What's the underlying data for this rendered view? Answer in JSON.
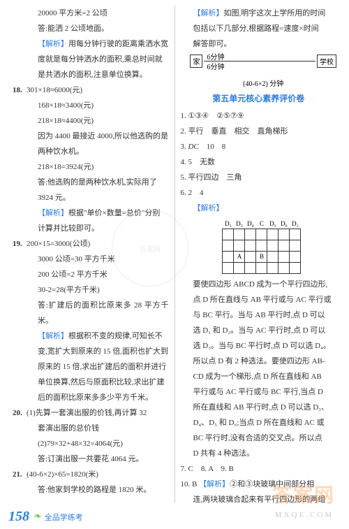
{
  "left": {
    "l1": "20000 平方米=2 公顷",
    "l2": "答:能洒 2 公顷地面。",
    "l3a": "【解析】",
    "l3b": "用每分钟行驶的距离乘洒水宽",
    "l4": "度就是每分钟洒水的面积,乘总时间就",
    "l5": "是共洒水的面积,注意单位换算。",
    "q18": "18.",
    "l6": "301×18≈6000(元)",
    "l7": "168×18≈3400(元)",
    "l8": "218×18≈4400(元)",
    "l9": "因为 4400 最接近 4000,所以他选购的是",
    "l10": "两种饮水机。",
    "l11": "218×18=3924(元)",
    "l12": "答:他选购的是两种饮水机,实际用了",
    "l13": "3924 元。",
    "l14a": "【解析】",
    "l14b": "根据\"单价×数量=总价\"分别",
    "l15": "计算并比较即可。",
    "q19": "19.",
    "l16": "200×15=3000(公顷)",
    "l17": "3000 公顷=30 平方千米",
    "l18": "200 公顷=2 平方千米",
    "l19": "30-2=28(平方千米)",
    "l20": "答:扩建后的面积比原来多 28 平方千米。",
    "l21a": "【解析】",
    "l21b": "根据积不变的规律,可知长不",
    "l22": "变,宽扩大到原来的 15 倍,面积也扩大到",
    "l23": "原来的 15 倍,求出扩建后的面积并进行",
    "l24": "单位换算,然后与原面积比较,求出扩建",
    "l25": "后的面积比原来多多少平方千米。",
    "q20": "20.",
    "l26": "(1)先算一套演出服的价钱,再计算 32",
    "l27": "套演出服的总价钱",
    "l28": "(2)79×32+48×32=4064(元)",
    "l29": "答:订演出服一共要花 4064 元。",
    "q21": "21.",
    "l30": "(40-6×2)×65=1820(米)",
    "l31": "答:他家到学校的路程是 1820 米。"
  },
  "right": {
    "r1a": "【解析】",
    "r1b": "如图,明宇这次上学所用的时间",
    "r2": "包括以下几部分,根据路程=速度×时间",
    "r3": "解答即可。",
    "route": {
      "home": "家",
      "school": "学校",
      "six1": "6分钟",
      "six2": "6分钟",
      "dur": "(40-6×2) 分钟"
    },
    "section": "第五单元核心素养评价卷",
    "a1": "1.  ①③④　②⑤⑦⑨",
    "a2": "2.  平行　垂直　相交　直角梯形",
    "a3": "3.  DC　10　8",
    "a4": "4.  5　无数",
    "a5": "5.  平行四边　三角",
    "a6": "6.  2　4",
    "r4": "【解析】",
    "grid": {
      "hdr": [
        "D₁",
        "D₃",
        "D₄",
        "C",
        "D₅",
        "D₆",
        "D₂"
      ],
      "A": "A",
      "B": "B"
    },
    "r5": "要使四边形 ABCD 成为一个平行四边形,",
    "r6": "点 D 所在直线与 AB 平行或与 AC 平行或",
    "r7": "与 BC 平行。当与 AB 平行时,点 D 可以",
    "r8": "选 D₁ 和 D₂。当与 AC 平行时,点 D 可以",
    "r9": "选 D₃。当与 BC 平行时,点 D 可以选 D₄。",
    "r10": "所以点 D 有 2 种选法。要使四边形 AB-",
    "r11": "CD 成为一个梯形,点 D 所在直线和 AB",
    "r12": "平行或与 AC 平行或与 BC 平行,当点 D",
    "r13": "所在直线和 AB 平行时,点 D 可以选 D₃、",
    "r14": "D₄、D₅ 和 D₆;当点 D 所在直线和 AC 或",
    "r15": "BC 平行时,没有合适的交叉点。所以点",
    "r16": "D 共有 4 种选法。",
    "a7": "7.  C　8.  A　9.  B",
    "a10n": "10.  B  ",
    "a10a": "【解析】",
    "a10b": "②和③块玻璃中间部分相",
    "r17": "连,两块玻璃合起来有平行四边形的两组"
  },
  "footer": {
    "page": "158",
    "text": "全品学练考"
  },
  "wm": {
    "main": "答案网",
    "sub": "MXQE.COM"
  }
}
